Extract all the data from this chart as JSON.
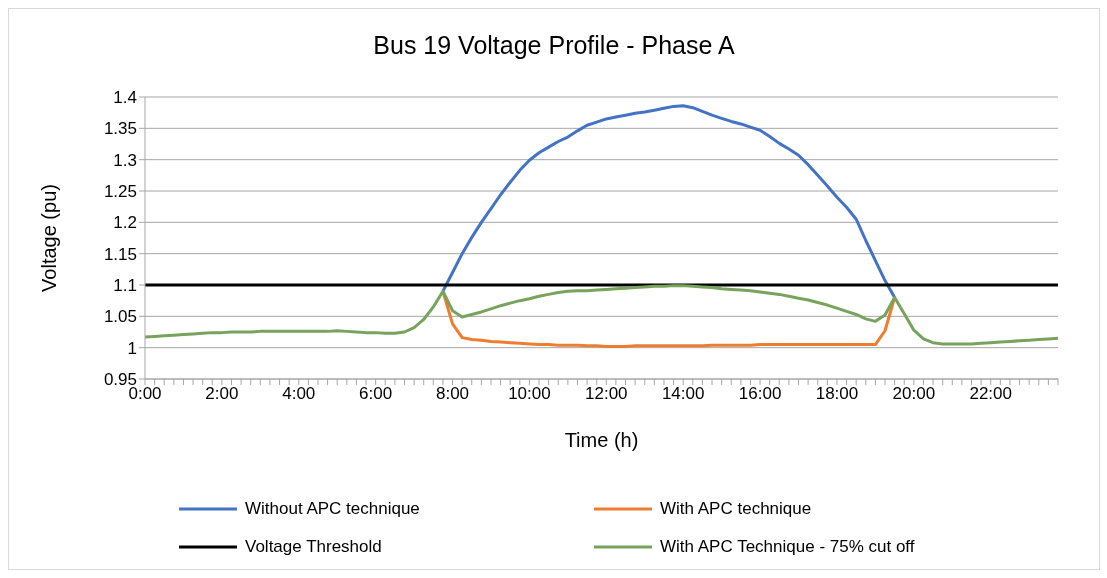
{
  "chart_data": {
    "type": "line",
    "title": "Bus 19 Voltage Profile - Phase A",
    "xlabel": "Time (h)",
    "ylabel": "Voltage (pu)",
    "categories": [
      "0:00",
      null,
      null,
      null,
      null,
      null,
      null,
      null,
      "2:00",
      null,
      null,
      null,
      null,
      null,
      null,
      null,
      "4:00",
      null,
      null,
      null,
      null,
      null,
      null,
      null,
      "6:00",
      null,
      null,
      null,
      null,
      null,
      null,
      null,
      "8:00",
      null,
      null,
      null,
      null,
      null,
      null,
      null,
      "10:00",
      null,
      null,
      null,
      null,
      null,
      null,
      null,
      "12:00",
      null,
      null,
      null,
      null,
      null,
      null,
      null,
      "14:00",
      null,
      null,
      null,
      null,
      null,
      null,
      null,
      "16:00",
      null,
      null,
      null,
      null,
      null,
      null,
      null,
      "18:00",
      null,
      null,
      null,
      null,
      null,
      null,
      null,
      "20:00",
      null,
      null,
      null,
      null,
      null,
      null,
      null,
      "22:00",
      null,
      null,
      null,
      null,
      null,
      null,
      null
    ],
    "series": [
      {
        "name": "Without APC technique",
        "color": "#4472c4",
        "values": [
          null,
          null,
          null,
          null,
          null,
          null,
          null,
          null,
          null,
          null,
          null,
          null,
          null,
          null,
          null,
          null,
          null,
          null,
          null,
          null,
          null,
          null,
          null,
          null,
          null,
          null,
          null,
          null,
          null,
          null,
          null,
          1.09,
          1.12,
          1.15,
          1.176,
          1.2,
          1.222,
          1.244,
          1.264,
          1.283,
          1.299,
          1.311,
          1.32,
          1.329,
          1.336,
          1.346,
          1.355,
          1.36,
          1.365,
          1.368,
          1.371,
          1.374,
          1.376,
          1.379,
          1.382,
          1.385,
          1.386,
          1.383,
          1.377,
          1.371,
          1.366,
          1.361,
          1.357,
          1.352,
          1.347,
          1.337,
          1.326,
          1.317,
          1.307,
          1.292,
          1.275,
          1.258,
          1.24,
          1.224,
          1.205,
          1.171,
          1.139,
          1.107,
          1.08,
          null,
          null,
          null,
          null,
          null,
          null,
          null,
          null,
          null,
          null,
          null,
          null,
          null,
          null,
          null,
          null,
          null
        ]
      },
      {
        "name": "With APC technique",
        "color": "#ed7d31",
        "values": [
          null,
          null,
          null,
          null,
          null,
          null,
          null,
          null,
          null,
          null,
          null,
          null,
          null,
          null,
          null,
          null,
          null,
          null,
          null,
          null,
          null,
          null,
          null,
          null,
          null,
          null,
          null,
          null,
          null,
          null,
          null,
          1.09,
          1.038,
          1.016,
          1.013,
          1.012,
          1.01,
          1.009,
          1.008,
          1.007,
          1.006,
          1.005,
          1.005,
          1.004,
          1.004,
          1.004,
          1.003,
          1.003,
          1.002,
          1.002,
          1.002,
          1.003,
          1.003,
          1.003,
          1.003,
          1.003,
          1.003,
          1.003,
          1.003,
          1.004,
          1.004,
          1.004,
          1.004,
          1.004,
          1.005,
          1.005,
          1.005,
          1.005,
          1.005,
          1.005,
          1.005,
          1.005,
          1.005,
          1.005,
          1.005,
          1.005,
          1.005,
          1.027,
          1.08,
          null,
          null,
          null,
          null,
          null,
          null,
          null,
          null,
          null,
          null,
          null,
          null,
          null,
          null,
          null,
          null,
          null
        ]
      },
      {
        "name": "Voltage Threshold",
        "color": "#000000",
        "values": [
          1.1,
          1.1,
          1.1,
          1.1,
          1.1,
          1.1,
          1.1,
          1.1,
          1.1,
          1.1,
          1.1,
          1.1,
          1.1,
          1.1,
          1.1,
          1.1,
          1.1,
          1.1,
          1.1,
          1.1,
          1.1,
          1.1,
          1.1,
          1.1,
          1.1,
          1.1,
          1.1,
          1.1,
          1.1,
          1.1,
          1.1,
          1.1,
          1.1,
          1.1,
          1.1,
          1.1,
          1.1,
          1.1,
          1.1,
          1.1,
          1.1,
          1.1,
          1.1,
          1.1,
          1.1,
          1.1,
          1.1,
          1.1,
          1.1,
          1.1,
          1.1,
          1.1,
          1.1,
          1.1,
          1.1,
          1.1,
          1.1,
          1.1,
          1.1,
          1.1,
          1.1,
          1.1,
          1.1,
          1.1,
          1.1,
          1.1,
          1.1,
          1.1,
          1.1,
          1.1,
          1.1,
          1.1,
          1.1,
          1.1,
          1.1,
          1.1,
          1.1,
          1.1,
          1.1,
          1.1,
          1.1,
          1.1,
          1.1,
          1.1,
          1.1,
          1.1,
          1.1,
          1.1,
          1.1,
          1.1,
          1.1,
          1.1,
          1.1,
          1.1,
          1.1,
          1.1
        ]
      },
      {
        "name": "With APC Technique - 75% cut off",
        "color": "#77a35c",
        "values": [
          1.017,
          1.018,
          1.019,
          1.02,
          1.021,
          1.022,
          1.023,
          1.024,
          1.024,
          1.025,
          1.025,
          1.025,
          1.026,
          1.026,
          1.026,
          1.026,
          1.026,
          1.026,
          1.026,
          1.026,
          1.027,
          1.026,
          1.025,
          1.024,
          1.024,
          1.023,
          1.023,
          1.025,
          1.032,
          1.045,
          1.065,
          1.09,
          1.059,
          1.049,
          1.053,
          1.057,
          1.062,
          1.067,
          1.071,
          1.075,
          1.078,
          1.082,
          1.085,
          1.088,
          1.09,
          1.091,
          1.091,
          1.092,
          1.093,
          1.094,
          1.095,
          1.096,
          1.097,
          1.098,
          1.098,
          1.099,
          1.099,
          1.098,
          1.097,
          1.096,
          1.094,
          1.093,
          1.092,
          1.091,
          1.089,
          1.087,
          1.085,
          1.082,
          1.079,
          1.076,
          1.072,
          1.068,
          1.063,
          1.058,
          1.053,
          1.046,
          1.042,
          1.052,
          1.08,
          1.054,
          1.028,
          1.014,
          1.008,
          1.006,
          1.006,
          1.006,
          1.006,
          1.007,
          1.008,
          1.009,
          1.01,
          1.011,
          1.012,
          1.013,
          1.014,
          1.015
        ]
      }
    ],
    "ylim": [
      0.95,
      1.4
    ],
    "yticks": [
      0.95,
      1,
      1.05,
      1.1,
      1.15,
      1.2,
      1.25,
      1.3,
      1.35,
      1.4
    ],
    "grid": "y",
    "legend": "bottom",
    "line_style": "solid"
  }
}
